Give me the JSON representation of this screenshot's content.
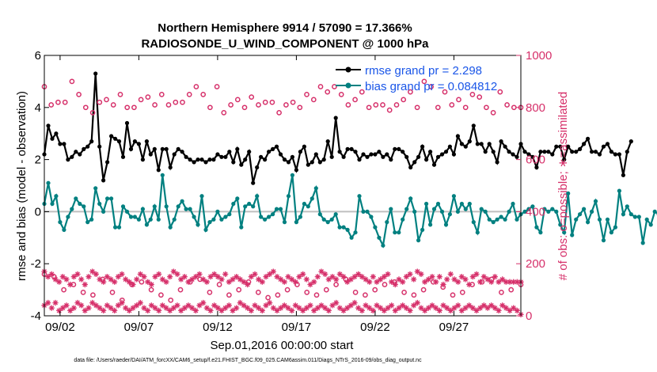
{
  "chart_data": {
    "type": "line",
    "title_line1": "Northern Hemisphere 9914 / 57090 = 17.366%",
    "title_line2": "RADIOSONDE_U_WIND_COMPONENT @ 1000 hPa",
    "xlabel": "Sep.01,2016 00:00:00 start",
    "ylabel_left": "rmse and bias (model - observation)",
    "ylabel_right": "# of obs: o=possible; ∗=assimilated",
    "xlim": [
      1.0,
      31.25
    ],
    "ylim_left": [
      -4,
      6
    ],
    "ylim_right": [
      0,
      1000
    ],
    "x_ticks": [
      2,
      7,
      12,
      17,
      22,
      27
    ],
    "x_tick_labels": [
      "09/02",
      "09/07",
      "09/12",
      "09/17",
      "09/22",
      "09/27"
    ],
    "y_left_ticks": [
      -4,
      -2,
      0,
      2,
      4,
      6
    ],
    "y_left_tick_labels": [
      "-4",
      "-2",
      "0",
      "2",
      "4",
      "6"
    ],
    "y_right_ticks": [
      0,
      200,
      400,
      600,
      800,
      1000
    ],
    "y_right_tick_labels": [
      "0",
      "200",
      "400",
      "600",
      "800",
      "1000"
    ],
    "time_step_days": 0.25,
    "series": [
      {
        "name": "rmse grand pr = 2.298",
        "axis": "left",
        "style": "line-marker",
        "color": "#000000",
        "values": [
          2.2,
          3.3,
          2.8,
          3.0,
          2.6,
          2.6,
          2.0,
          2.1,
          2.3,
          2.2,
          2.4,
          2.5,
          2.7,
          5.3,
          2.5,
          1.2,
          1.9,
          2.9,
          2.8,
          2.7,
          2.1,
          3.4,
          2.4,
          2.7,
          2.6,
          2.0,
          2.7,
          2.2,
          2.4,
          1.6,
          2.4,
          2.4,
          1.7,
          2.2,
          2.4,
          2.3,
          2.1,
          2.0,
          1.9,
          2.0,
          2.0,
          1.9,
          2.0,
          2.0,
          2.2,
          2.1,
          2.1,
          2.3,
          1.9,
          2.4,
          1.8,
          2.0,
          2.3,
          1.1,
          1.7,
          2.1,
          2.0,
          2.3,
          2.4,
          2.5,
          2.2,
          2.0,
          1.9,
          2.1,
          1.6,
          2.3,
          2.5,
          1.8,
          1.9,
          2.2,
          1.9,
          2.0,
          2.7,
          2.1,
          3.6,
          2.3,
          2.1,
          2.4,
          2.4,
          2.3,
          2.0,
          2.2,
          2.1,
          2.2,
          2.2,
          2.3,
          2.1,
          2.2,
          2.0,
          2.4,
          2.4,
          2.3,
          2.1,
          1.7,
          1.9,
          2.1,
          2.5,
          2.0,
          2.3,
          1.8,
          2.1,
          2.2,
          2.3,
          2.5,
          2.2,
          2.9,
          2.6,
          2.5,
          2.7,
          3.3,
          2.6,
          2.6,
          2.3,
          2.6,
          2.3,
          1.9,
          2.7,
          2.5,
          2.3,
          2.2,
          2.1,
          2.6,
          2.3,
          2.2,
          2.1,
          1.7,
          2.3,
          2.3,
          2.3,
          2.2,
          2.5,
          2.5,
          2.0,
          2.5,
          2.3,
          2.3,
          2.4,
          2.6,
          2.8,
          2.3,
          2.3,
          2.2,
          2.5,
          2.6,
          2.3,
          2.2,
          2.2,
          1.4,
          2.3,
          2.7
        ]
      },
      {
        "name": "bias grand pr = 0.084812",
        "axis": "left",
        "style": "line-marker",
        "color": "#008080",
        "values": [
          0.3,
          1.1,
          0.3,
          0.6,
          -0.4,
          -0.7,
          -0.2,
          0.1,
          0.5,
          0.3,
          0.2,
          -0.4,
          -0.3,
          0.9,
          0.3,
          0.0,
          0.5,
          0.5,
          -0.6,
          -0.6,
          0.2,
          0.0,
          -0.2,
          -0.2,
          -0.3,
          0.1,
          -0.5,
          -0.3,
          0.2,
          -0.3,
          1.4,
          0.2,
          -0.6,
          -0.3,
          0.2,
          0.4,
          0.1,
          0.1,
          -0.2,
          -0.5,
          0.6,
          -0.7,
          -0.4,
          -0.3,
          0.0,
          -0.3,
          -0.2,
          -0.1,
          0.3,
          0.5,
          -0.6,
          0.2,
          0.3,
          0.2,
          0.6,
          -0.2,
          -0.3,
          -0.2,
          -0.1,
          0.1,
          0.1,
          -0.4,
          0.6,
          1.4,
          -0.4,
          -0.2,
          0.3,
          0.2,
          0.5,
          0.9,
          -0.1,
          -0.3,
          -0.4,
          -0.3,
          -0.1,
          -0.6,
          -0.6,
          -0.7,
          -1.0,
          -0.8,
          0.6,
          0.0,
          0.0,
          -0.2,
          -0.6,
          -1.0,
          -1.3,
          -0.4,
          0.1,
          -0.8,
          -0.8,
          -0.3,
          0.1,
          0.5,
          0.0,
          -1.1,
          -0.7,
          0.3,
          -0.5,
          0.1,
          0.3,
          0.0,
          -0.5,
          -0.1,
          0.6,
          0.0,
          0.3,
          0.1,
          0.3,
          -0.4,
          -0.8,
          0.1,
          0.0,
          -0.3,
          -0.4,
          -0.3,
          -0.2,
          -0.3,
          0.0,
          0.3,
          -0.3,
          -0.1,
          0.0,
          0.1,
          0.2,
          -0.6,
          -0.8,
          0.1,
          0.0,
          0.1,
          0.0,
          -0.5,
          -0.8,
          0.7,
          -0.9,
          -0.3,
          -0.1,
          0.1,
          -0.4,
          0.0,
          0.4,
          -0.3,
          -1.1,
          -0.3,
          -0.8,
          -0.6,
          0.8,
          -0.1,
          0.2,
          -0.1,
          -0.2,
          -0.2,
          -1.2,
          -0.3,
          -0.5,
          0.0,
          -0.1,
          -0.1,
          0.0,
          -0.3,
          -0.4,
          -0.1,
          0.0,
          -1.2
        ]
      },
      {
        "name": "possible obs (high)",
        "axis": "right",
        "style": "circle",
        "color": "#d6306a",
        "values": [
          880,
          810,
          820,
          820,
          900,
          850,
          800,
          780,
          820,
          830,
          810,
          850,
          800,
          800,
          830,
          840,
          810,
          850,
          810,
          820,
          820,
          850,
          880,
          850,
          800,
          880,
          780,
          810,
          830,
          800,
          840,
          810,
          820,
          820,
          780,
          810,
          820,
          800,
          850,
          830,
          880,
          860,
          880,
          850,
          810,
          830,
          860,
          800,
          810,
          810,
          790,
          810,
          830,
          860,
          800,
          900,
          880,
          800,
          860,
          810,
          830,
          800,
          850,
          840,
          800,
          780,
          860,
          810,
          800,
          800
        ]
      },
      {
        "name": "possible obs (low)",
        "axis": "right",
        "style": "circle",
        "color": "#d6306a",
        "values": [
          160,
          150,
          100,
          120,
          90,
          80,
          140,
          90,
          60,
          120,
          130,
          100,
          80,
          60,
          100,
          130,
          140,
          90,
          120,
          80,
          100,
          130,
          90,
          70,
          80,
          100,
          120,
          90,
          80,
          100,
          120,
          140,
          90,
          80,
          100,
          120,
          130,
          90,
          80,
          100,
          130,
          110,
          80,
          90,
          120,
          130,
          140,
          90,
          100,
          120
        ]
      },
      {
        "name": "assimilated obs (high)",
        "axis": "right",
        "style": "star",
        "color": "#d6306a",
        "values": [
          170,
          150,
          160,
          140,
          130,
          150,
          140,
          120,
          150,
          160,
          140,
          120,
          150,
          170,
          160,
          140,
          130,
          150,
          140,
          130,
          150,
          160,
          140,
          130,
          120,
          140,
          160,
          150,
          130,
          120,
          150,
          160,
          140,
          130,
          150,
          170,
          160,
          140,
          150,
          130,
          140,
          150,
          160,
          140,
          130,
          150,
          160,
          150,
          140,
          160,
          130,
          140,
          150,
          140,
          130,
          120,
          150,
          160,
          140,
          130,
          150,
          160,
          170,
          150,
          140,
          130,
          150,
          140,
          130,
          150,
          160,
          140,
          120,
          130,
          150,
          170,
          160,
          140,
          150,
          140,
          160,
          150,
          130,
          140,
          150,
          160,
          150,
          140,
          130,
          150,
          130,
          140,
          150,
          160,
          130,
          120,
          140,
          130,
          150,
          160,
          140,
          170,
          160,
          130,
          140,
          150,
          130,
          150,
          120,
          140,
          160,
          140,
          130,
          150,
          140,
          120,
          150,
          160,
          130,
          150,
          140,
          130,
          150,
          130,
          140,
          130,
          130,
          130,
          130,
          130
        ]
      },
      {
        "name": "assimilated obs (low)",
        "axis": "right",
        "style": "star",
        "color": "#d6306a",
        "values": [
          40,
          50,
          30,
          50,
          20,
          30,
          40,
          20,
          30,
          50,
          40,
          20,
          30,
          50,
          40,
          30,
          20,
          40,
          30,
          20,
          40,
          50,
          30,
          20,
          30,
          40,
          50,
          30,
          20,
          40,
          30,
          20,
          40,
          30,
          20,
          30,
          40,
          20,
          30,
          40,
          30,
          20,
          40,
          50,
          30,
          20,
          40,
          30,
          20,
          30,
          40,
          20,
          30,
          50,
          40,
          30,
          20,
          40,
          30,
          20,
          40,
          50,
          30,
          20,
          30,
          40,
          30,
          20,
          40,
          30,
          20,
          30,
          40,
          20,
          30,
          40,
          30,
          20,
          40,
          50,
          30,
          20,
          30,
          40,
          50,
          30,
          20,
          40,
          30,
          20,
          40,
          30,
          20,
          30,
          40,
          20,
          30,
          40,
          30,
          20,
          40,
          50,
          30,
          20,
          30,
          40,
          30,
          20,
          40,
          30,
          20,
          30,
          40,
          20,
          30,
          40,
          30,
          20,
          30,
          40,
          30,
          40,
          30,
          20,
          40,
          30,
          20,
          30,
          20,
          5
        ]
      }
    ],
    "footnote": "data file: /Users/raeder/DAI/ATM_forcXX/CAM6_setup/f.e21.FHIST_BGC.f09_025.CAM6assim.011/Diags_NTrS_2016-09/obs_diag_output.nc"
  },
  "colors": {
    "rmse": "#000000",
    "bias": "#008080",
    "obs": "#d6306a",
    "legend_text": "#1a56e8",
    "zero_line": "#bfbfbf"
  }
}
